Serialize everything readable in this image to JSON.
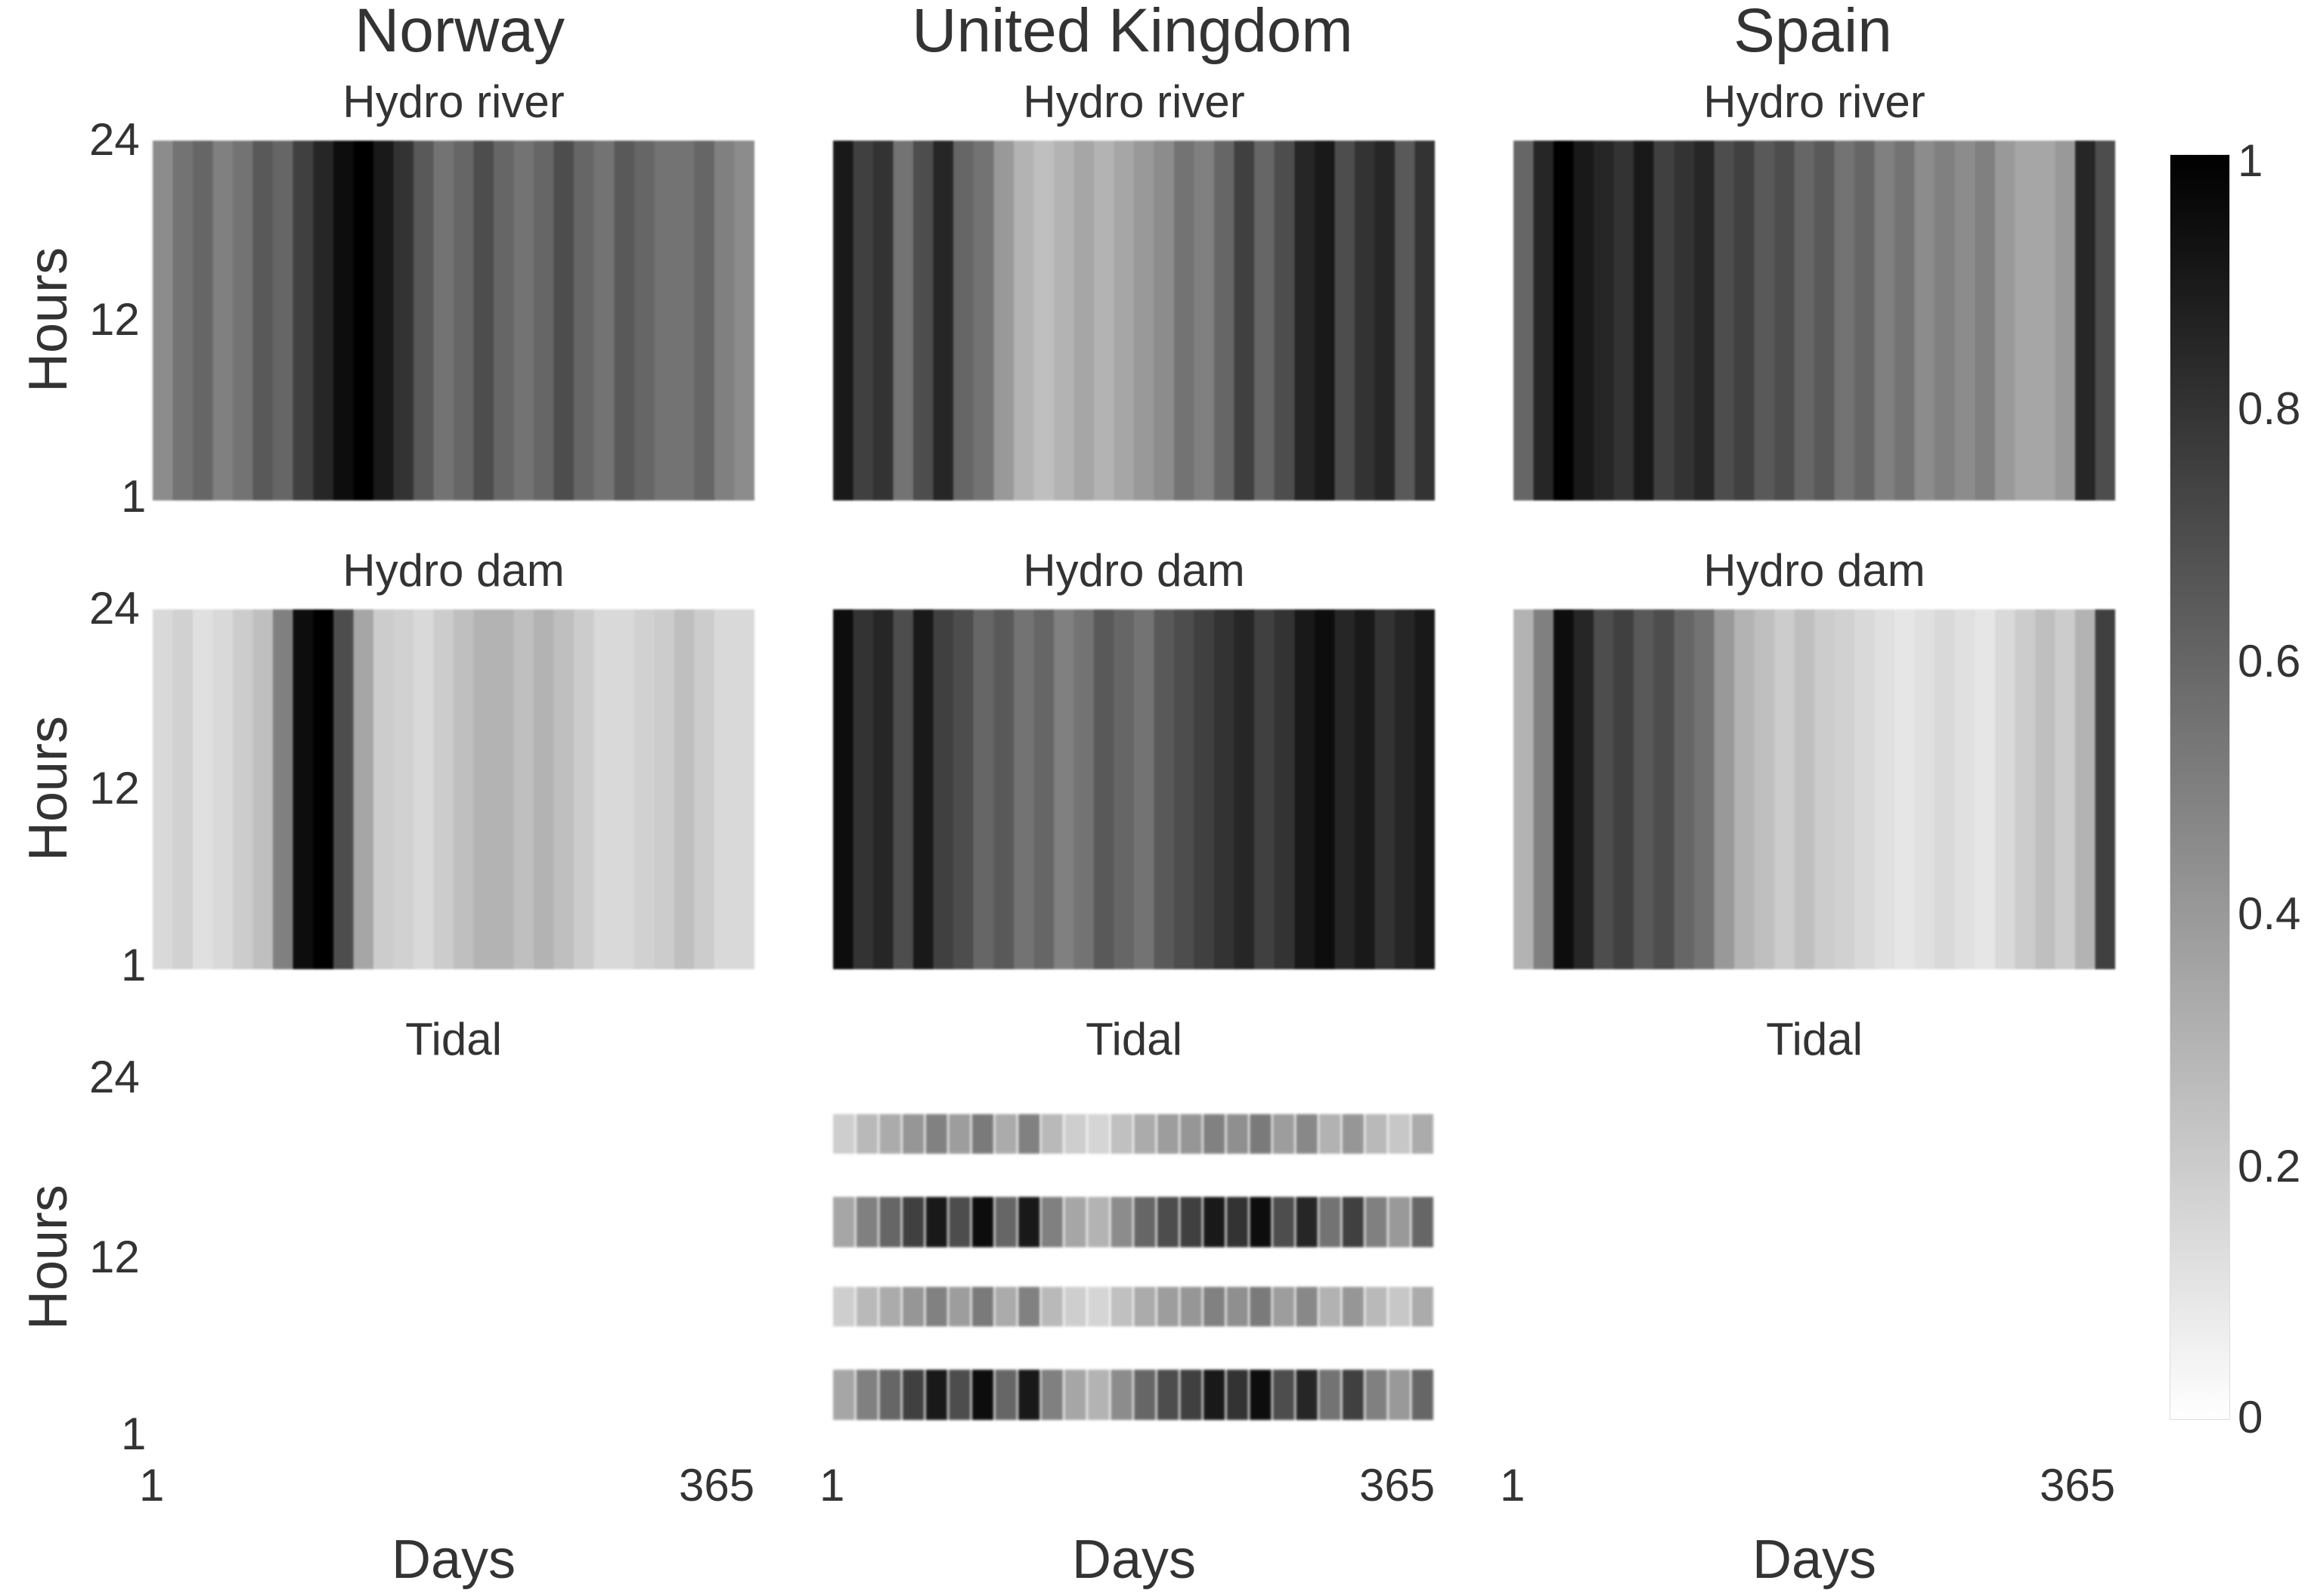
{
  "columns": [
    "Norway",
    "United Kingdom",
    "Spain"
  ],
  "panel_titles": [
    "Hydro river",
    "Hydro dam",
    "Tidal"
  ],
  "ylabel": "Hours",
  "xlabel": "Days",
  "y_ticks": [
    "24",
    "12",
    "1"
  ],
  "x_ticks": [
    "1",
    "365"
  ],
  "colorbar_ticks": [
    "1",
    "0.8",
    "0.6",
    "0.4",
    "0.2",
    "0"
  ],
  "chart_data": {
    "type": "heatmap",
    "x_range": [
      1,
      365
    ],
    "y_range": [
      1,
      24
    ],
    "color_range": [
      0,
      1
    ],
    "colormap": "white-to-black",
    "panels": [
      {
        "country": "Norway",
        "technology": "Hydro river",
        "daily_profile": [
          0.45,
          0.55,
          0.6,
          0.5,
          0.55,
          0.65,
          0.6,
          0.75,
          0.85,
          0.95,
          1.0,
          0.9,
          0.8,
          0.65,
          0.55,
          0.6,
          0.7,
          0.6,
          0.55,
          0.6,
          0.7,
          0.6,
          0.55,
          0.65,
          0.6,
          0.55,
          0.55,
          0.6,
          0.5,
          0.45
        ]
      },
      {
        "country": "United Kingdom",
        "technology": "Hydro river",
        "daily_profile": [
          0.9,
          0.75,
          0.8,
          0.55,
          0.7,
          0.85,
          0.6,
          0.55,
          0.4,
          0.3,
          0.25,
          0.3,
          0.35,
          0.3,
          0.35,
          0.4,
          0.45,
          0.55,
          0.5,
          0.6,
          0.75,
          0.6,
          0.7,
          0.85,
          0.9,
          0.7,
          0.8,
          0.85,
          0.65,
          0.8
        ]
      },
      {
        "country": "Spain",
        "technology": "Hydro river",
        "daily_profile": [
          0.6,
          0.85,
          1.0,
          0.9,
          0.85,
          0.8,
          0.9,
          0.75,
          0.8,
          0.85,
          0.7,
          0.75,
          0.65,
          0.7,
          0.6,
          0.65,
          0.55,
          0.6,
          0.5,
          0.55,
          0.45,
          0.5,
          0.45,
          0.5,
          0.4,
          0.35,
          0.35,
          0.4,
          0.85,
          0.7
        ]
      },
      {
        "country": "Norway",
        "technology": "Hydro dam",
        "daily_profile": [
          0.15,
          0.18,
          0.12,
          0.15,
          0.2,
          0.25,
          0.5,
          0.95,
          1.0,
          0.7,
          0.35,
          0.2,
          0.18,
          0.15,
          0.2,
          0.25,
          0.3,
          0.3,
          0.25,
          0.3,
          0.25,
          0.2,
          0.15,
          0.15,
          0.18,
          0.2,
          0.25,
          0.2,
          0.15,
          0.15
        ]
      },
      {
        "country": "United Kingdom",
        "technology": "Hydro dam",
        "daily_profile": [
          0.95,
          0.8,
          0.85,
          0.7,
          0.9,
          0.75,
          0.7,
          0.6,
          0.65,
          0.55,
          0.6,
          0.5,
          0.55,
          0.65,
          0.6,
          0.55,
          0.65,
          0.7,
          0.75,
          0.8,
          0.85,
          0.75,
          0.8,
          0.9,
          0.95,
          0.85,
          0.9,
          0.8,
          0.85,
          0.9
        ]
      },
      {
        "country": "Spain",
        "technology": "Hydro dam",
        "daily_profile": [
          0.3,
          0.5,
          0.95,
          0.85,
          0.7,
          0.75,
          0.65,
          0.7,
          0.6,
          0.55,
          0.4,
          0.3,
          0.25,
          0.2,
          0.25,
          0.2,
          0.18,
          0.15,
          0.12,
          0.1,
          0.12,
          0.15,
          0.12,
          0.1,
          0.15,
          0.2,
          0.25,
          0.2,
          0.3,
          0.75
        ]
      },
      {
        "country": "Norway",
        "technology": "Tidal",
        "value": 0
      },
      {
        "country": "United Kingdom",
        "technology": "Tidal",
        "pattern": "semi-diurnal bands near hours 4 and 16 (strong) and 9 and 21 (weak), spring-neap modulation across days"
      },
      {
        "country": "Spain",
        "technology": "Tidal",
        "value": 0
      }
    ]
  }
}
